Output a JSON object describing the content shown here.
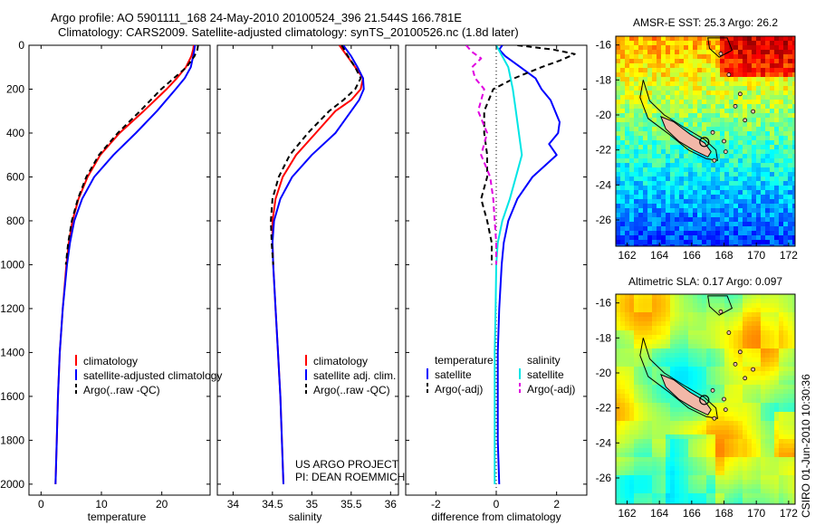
{
  "header": {
    "line1": "Argo profile: AO 5901111_168 24-May-2010 20100524_396 21.544S 166.781E",
    "line2": "Climatology: CARS2009. Satellite-adjusted climatology: synTS_20100526.nc (1.8d later)"
  },
  "credits": {
    "line1": "US ARGO PROJECT",
    "line2": "PI: DEAN ROEMMICH"
  },
  "timestamp": "CSIRO 01-Jun-2010 10:30:36",
  "colors": {
    "climatology": "#ff0000",
    "satellite": "#0000ff",
    "argo": "#000000",
    "satellite_diff": "#00e5e5",
    "argo_diff": "#e000e0"
  },
  "chart_data": [
    {
      "id": "temperature",
      "type": "line",
      "xlabel": "temperature",
      "xlim": [
        -2,
        28
      ],
      "xticks": [
        0,
        10,
        20
      ],
      "ylim": [
        2050,
        0
      ],
      "yticks": [
        0,
        200,
        400,
        600,
        800,
        1000,
        1200,
        1400,
        1600,
        1800,
        2000
      ],
      "legend_placement": "bottom-right",
      "series": [
        {
          "name": "climatology",
          "color": "#ff0000",
          "dash": "",
          "depth": [
            0,
            20,
            50,
            100,
            150,
            200,
            300,
            400,
            500,
            600,
            700,
            800,
            900,
            1000,
            1200,
            1400,
            1600,
            1800,
            2000
          ],
          "values": [
            25.3,
            25.2,
            24.9,
            24.0,
            22.5,
            20.8,
            17.0,
            13.0,
            9.8,
            7.7,
            6.2,
            5.2,
            4.6,
            4.2,
            3.6,
            3.1,
            2.8,
            2.6,
            2.4
          ]
        },
        {
          "name": "satellite-adjusted climatology",
          "color": "#0000ff",
          "dash": "",
          "depth": [
            0,
            20,
            50,
            100,
            150,
            200,
            300,
            400,
            500,
            600,
            700,
            800,
            900,
            1000,
            1200,
            1400,
            1600,
            1800,
            2000
          ],
          "values": [
            25.5,
            25.4,
            25.2,
            24.8,
            23.8,
            22.3,
            19.2,
            15.7,
            12.0,
            8.8,
            6.8,
            5.5,
            4.8,
            4.3,
            3.6,
            3.1,
            2.8,
            2.6,
            2.4
          ]
        },
        {
          "name": "Argo(..raw -QC)",
          "color": "#000000",
          "dash": "6,4",
          "depth": [
            0,
            20,
            50,
            100,
            150,
            200,
            300,
            400,
            500,
            600,
            700,
            800,
            900,
            1000
          ],
          "values": [
            26.0,
            25.9,
            25.4,
            24.1,
            22.0,
            19.9,
            16.4,
            12.7,
            9.6,
            7.5,
            6.1,
            5.1,
            4.5,
            4.1
          ]
        }
      ]
    },
    {
      "id": "salinity",
      "type": "line",
      "xlabel": "salinity",
      "xlim": [
        33.8,
        36.1
      ],
      "xticks": [
        34,
        34.5,
        35,
        35.5,
        36
      ],
      "ylim": [
        2050,
        0
      ],
      "legend_placement": "bottom-right",
      "series": [
        {
          "name": "climatology",
          "color": "#ff0000",
          "dash": "",
          "depth": [
            0,
            50,
            100,
            150,
            200,
            250,
            300,
            400,
            500,
            600,
            700,
            800,
            900,
            1000,
            1200,
            1400,
            1600,
            1800,
            2000
          ],
          "values": [
            35.35,
            35.45,
            35.55,
            35.65,
            35.62,
            35.5,
            35.3,
            35.05,
            34.8,
            34.63,
            34.54,
            34.5,
            34.5,
            34.51,
            34.54,
            34.57,
            34.6,
            34.62,
            34.64
          ]
        },
        {
          "name": "satellite adj. clim.",
          "color": "#0000ff",
          "dash": "",
          "depth": [
            0,
            50,
            100,
            150,
            200,
            250,
            300,
            400,
            500,
            600,
            700,
            800,
            900,
            1000,
            1200,
            1400,
            1600,
            1800,
            2000
          ],
          "values": [
            35.4,
            35.5,
            35.58,
            35.65,
            35.66,
            35.6,
            35.5,
            35.3,
            35.0,
            34.75,
            34.6,
            34.52,
            34.5,
            34.51,
            34.54,
            34.57,
            34.6,
            34.62,
            34.64
          ]
        },
        {
          "name": "Argo(..raw -QC)",
          "color": "#000000",
          "dash": "6,4",
          "depth": [
            0,
            50,
            100,
            150,
            200,
            250,
            300,
            400,
            500,
            600,
            700,
            800,
            900,
            1000
          ],
          "values": [
            35.38,
            35.46,
            35.55,
            35.62,
            35.55,
            35.4,
            35.22,
            34.95,
            34.72,
            34.58,
            34.5,
            34.48,
            34.49,
            34.51
          ]
        }
      ]
    },
    {
      "id": "difference",
      "type": "line",
      "xlabel": "difference from climatology",
      "xlim": [
        -3,
        3
      ],
      "xticks": [
        -2,
        0,
        2
      ],
      "ylim": [
        2050,
        0
      ],
      "zero_line": "dotted",
      "legend_groups": [
        {
          "title": "temperature",
          "entries": [
            "satellite",
            "Argo(-adj)"
          ]
        },
        {
          "title": "salinity",
          "entries": [
            "satellite",
            "Argo(-adj)"
          ]
        }
      ],
      "series": [
        {
          "name": "temperature satellite",
          "color": "#0000ff",
          "dash": "",
          "depth": [
            0,
            20,
            50,
            100,
            150,
            200,
            250,
            300,
            350,
            400,
            450,
            500,
            600,
            700,
            800,
            900,
            1000,
            1200,
            1400,
            1600,
            1800,
            2000
          ],
          "values": [
            0.2,
            0.1,
            0.3,
            0.8,
            1.3,
            1.5,
            1.8,
            1.95,
            2.1,
            2.05,
            1.75,
            2.0,
            1.2,
            0.7,
            0.4,
            0.25,
            0.18,
            0.1,
            0.05,
            0.05,
            0.05,
            0.1
          ]
        },
        {
          "name": "temperature Argo(-adj)",
          "color": "#000000",
          "dash": "6,4",
          "depth": [
            0,
            20,
            40,
            70,
            100,
            150,
            200,
            300,
            400,
            500,
            600,
            700,
            800,
            900,
            1000
          ],
          "values": [
            0.7,
            1.9,
            2.6,
            2.1,
            1.5,
            0.6,
            -0.1,
            -0.4,
            -0.4,
            -0.3,
            -0.3,
            -0.5,
            -0.3,
            -0.15,
            -0.15
          ]
        },
        {
          "name": "salinity satellite",
          "color": "#00e5e5",
          "dash": "",
          "depth": [
            0,
            50,
            100,
            200,
            300,
            400,
            500,
            600,
            700,
            800,
            900,
            1000,
            1200,
            1400,
            1600,
            1800,
            2000
          ],
          "values": [
            0.0,
            0.2,
            0.4,
            0.55,
            0.65,
            0.75,
            0.85,
            0.65,
            0.45,
            0.2,
            0.05,
            0.0,
            -0.02,
            -0.05,
            -0.05,
            -0.05,
            -0.05
          ]
        },
        {
          "name": "salinity Argo(-adj)",
          "color": "#e000e0",
          "dash": "6,4",
          "depth": [
            0,
            30,
            60,
            100,
            150,
            200,
            300,
            400,
            500,
            600,
            700,
            800,
            900,
            1000
          ],
          "values": [
            -1.0,
            -0.8,
            -0.5,
            -0.8,
            -0.7,
            -0.4,
            -0.6,
            -0.3,
            -0.5,
            -0.2,
            -0.1,
            -0.05,
            0.0,
            0.0
          ]
        }
      ]
    },
    {
      "id": "sst_map",
      "type": "heatmap",
      "title": "AMSR-E SST: 25.3 Argo: 26.2",
      "xlim": [
        161.3,
        172.4
      ],
      "ylim": [
        -27.5,
        -15.5
      ],
      "xticks": [
        162,
        164,
        166,
        168,
        170,
        172
      ],
      "yticks": [
        -16,
        -18,
        -20,
        -22,
        -24,
        -26
      ],
      "argo_position": [
        166.781,
        -21.544
      ]
    },
    {
      "id": "sla_map",
      "type": "heatmap",
      "title": "Altimetric SLA: 0.17 Argo: 0.097",
      "xlim": [
        161.3,
        172.4
      ],
      "ylim": [
        -27.5,
        -15.5
      ],
      "xticks": [
        162,
        164,
        166,
        168,
        170,
        172
      ],
      "yticks": [
        -16,
        -18,
        -20,
        -22,
        -24,
        -26
      ],
      "argo_position": [
        166.781,
        -21.544
      ]
    }
  ]
}
